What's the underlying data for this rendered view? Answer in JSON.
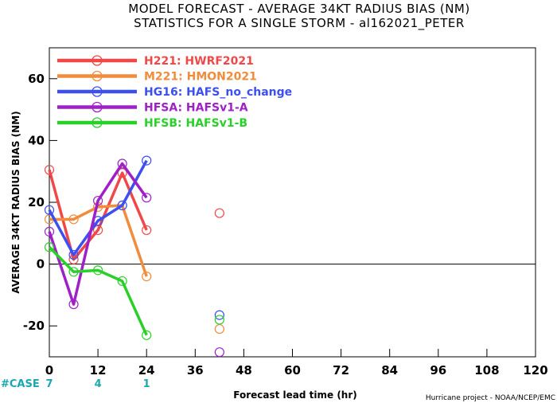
{
  "chart_data": {
    "type": "line",
    "title": "MODEL FORECAST - AVERAGE 34KT RADIUS BIAS (NM)",
    "subtitle": "STATISTICS FOR A SINGLE STORM - al162021_PETER",
    "xlabel": "Forecast lead time (hr)",
    "ylabel": "AVERAGE 34KT RADIUS BIAS (NM)",
    "credit": "Hurricane project - NOAA/NCEP/EMC",
    "xlim": [
      0,
      120
    ],
    "ylim": [
      -30,
      70
    ],
    "xticks": [
      0,
      12,
      24,
      36,
      48,
      60,
      72,
      84,
      96,
      108,
      120
    ],
    "yticks": [
      -20,
      0,
      20,
      40,
      60
    ],
    "zero_line": true,
    "grid": false,
    "legend_position": "top-left",
    "cases": {
      "label": "#CASE",
      "items": [
        {
          "x": 0,
          "n": "7"
        },
        {
          "x": 12,
          "n": "4"
        },
        {
          "x": 24,
          "n": "1"
        }
      ]
    },
    "series": [
      {
        "code": "H221",
        "name": "HWRF2021",
        "color": "#f04848",
        "x": [
          0,
          6,
          12,
          18,
          24
        ],
        "y": [
          30.5,
          1.5,
          11,
          29.5,
          11
        ],
        "extra_points": [
          {
            "x": 42,
            "y": 16.5
          }
        ]
      },
      {
        "code": "M221",
        "name": "HMON2021",
        "color": "#f08c3c",
        "x": [
          0,
          6,
          12,
          18,
          24
        ],
        "y": [
          14.5,
          14.5,
          18.5,
          19,
          -4
        ],
        "extra_points": [
          {
            "x": 42,
            "y": -21
          }
        ]
      },
      {
        "code": "HG16",
        "name": "HAFS_no_change",
        "color": "#3c50f0",
        "x": [
          0,
          6,
          12,
          18,
          24
        ],
        "y": [
          17.5,
          3,
          14,
          19,
          33.5
        ],
        "extra_points": [
          {
            "x": 42,
            "y": -16.5
          }
        ]
      },
      {
        "code": "HFSA",
        "name": "HAFSv1-A",
        "color": "#a020c8",
        "x": [
          0,
          6,
          12,
          18,
          24
        ],
        "y": [
          10.5,
          -13,
          20.5,
          32.5,
          21.5
        ],
        "extra_points": [
          {
            "x": 42,
            "y": -28.5
          }
        ]
      },
      {
        "code": "HFSB",
        "name": "HAFSv1-B",
        "color": "#28d028",
        "x": [
          0,
          6,
          12,
          18,
          24
        ],
        "y": [
          5.5,
          -2.5,
          -2,
          -5.5,
          -23
        ],
        "extra_points": [
          {
            "x": 42,
            "y": -18
          }
        ]
      }
    ]
  }
}
